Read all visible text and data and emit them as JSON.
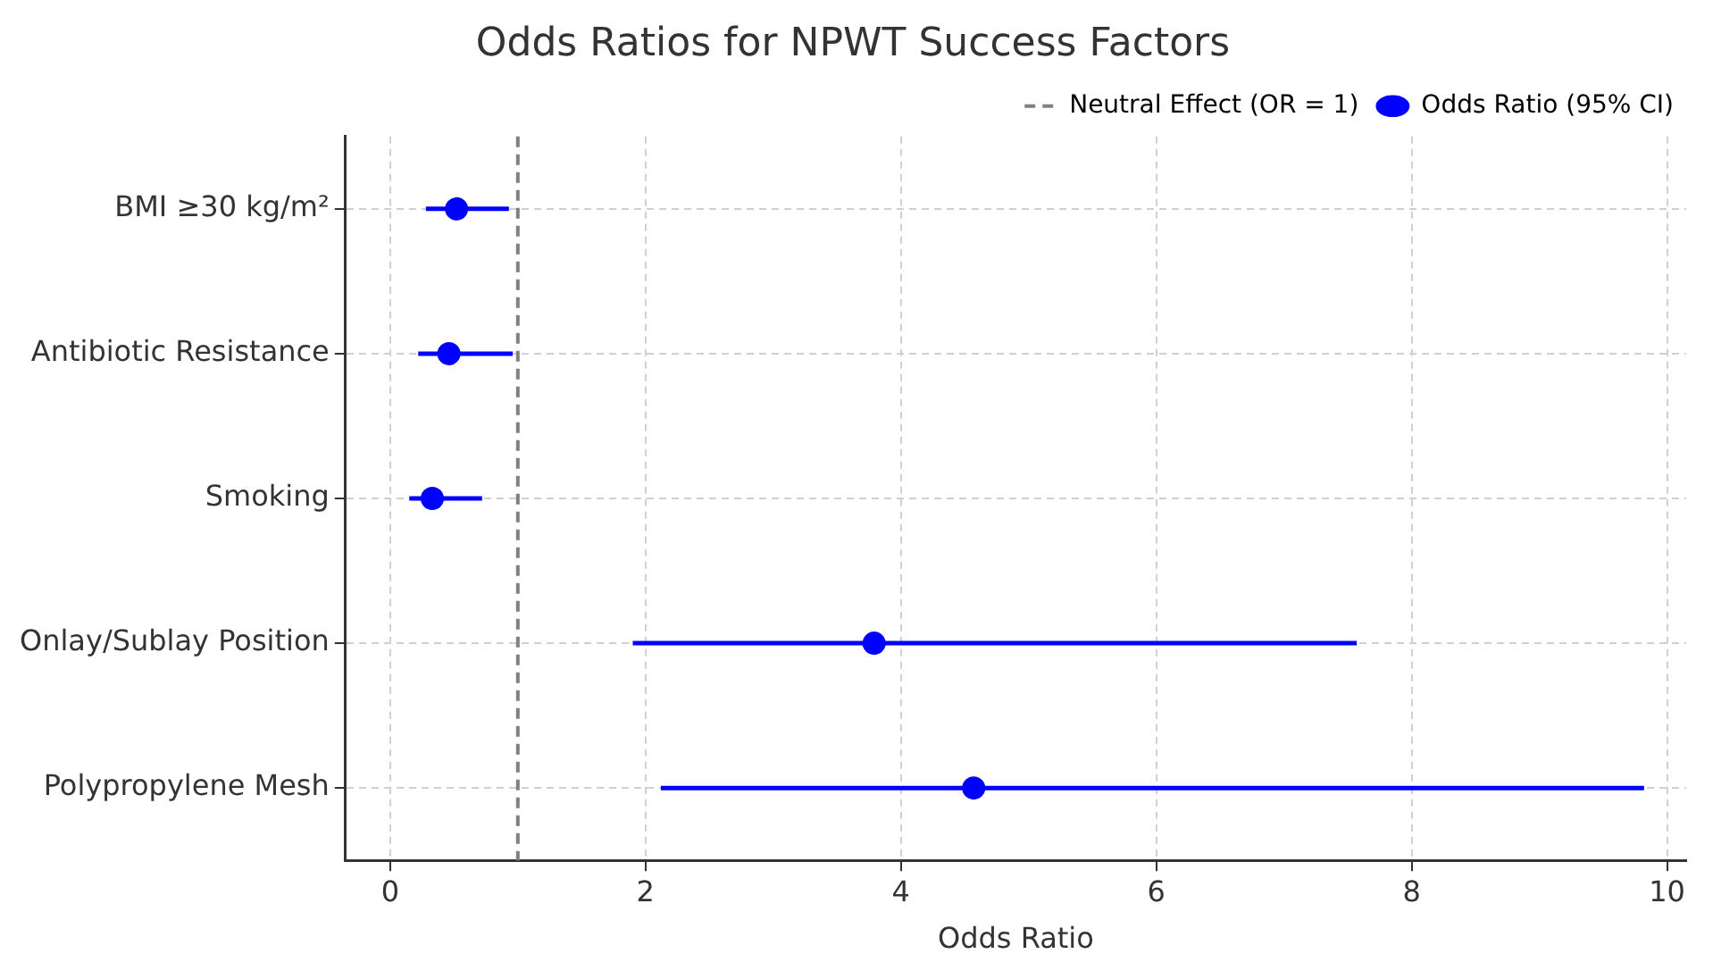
{
  "chart_data": {
    "type": "scatter",
    "orientation": "horizontal",
    "title": "Odds Ratios for NPWT Success Factors",
    "xlabel": "Odds Ratio",
    "categories": [
      "BMI ≥30 kg/m²",
      "Antibiotic Resistance",
      "Smoking",
      "Onlay/Sublay Position",
      "Polypropylene Mesh"
    ],
    "series": [
      {
        "name": "Odds Ratio (95% CI)",
        "color": "#0000ff",
        "values": [
          0.52,
          0.46,
          0.33,
          3.79,
          4.57
        ],
        "errors": [
          [
            0.28,
            0.93
          ],
          [
            0.22,
            0.96
          ],
          [
            0.15,
            0.72
          ],
          [
            1.9,
            7.57
          ],
          [
            2.12,
            9.82
          ]
        ]
      }
    ],
    "ref_lines": [
      {
        "axis": "x",
        "value": 1,
        "label": "Neutral Effect (OR = 1)",
        "color": "#808080",
        "line_style": "dashed"
      }
    ],
    "xlim": [
      -0.35,
      10.15
    ],
    "xticks": [
      0,
      2,
      4,
      6,
      8,
      10
    ],
    "grid": true,
    "legend": "top right",
    "marker": "circle"
  }
}
